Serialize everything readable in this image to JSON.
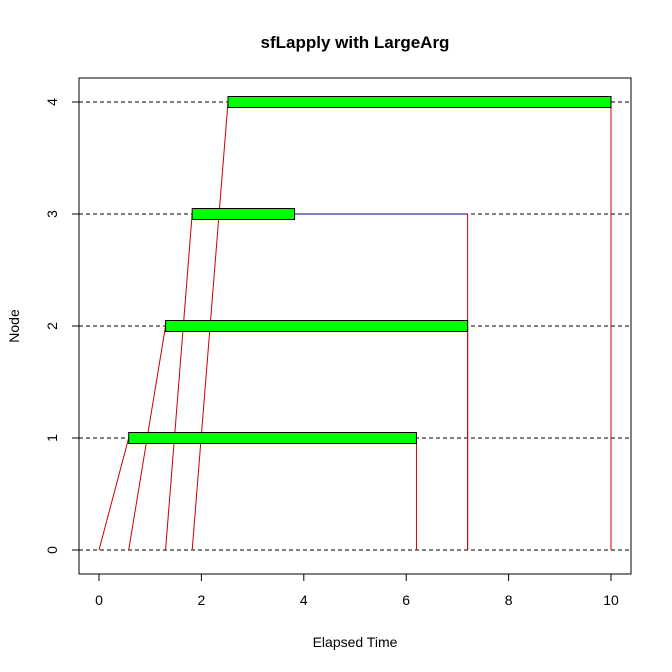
{
  "chart_data": {
    "type": "timeline",
    "title": "sfLapply with LargeArg",
    "xlabel": "Elapsed Time",
    "ylabel": "Node",
    "xlim": [
      0,
      10
    ],
    "ylim": [
      0,
      4
    ],
    "x_ticks": [
      0,
      2,
      4,
      6,
      8,
      10
    ],
    "y_ticks": [
      0,
      1,
      2,
      3,
      4
    ],
    "grid": "dashed horizontal lines at each node",
    "nodes": [
      1,
      2,
      3,
      4
    ],
    "tasks": [
      {
        "node": 1,
        "send_start": 0.0,
        "compute_start": 0.58,
        "compute_end": 6.2,
        "result_received": 6.2
      },
      {
        "node": 2,
        "send_start": 0.58,
        "compute_start": 1.3,
        "compute_end": 7.2,
        "result_received": 7.2
      },
      {
        "node": 3,
        "send_start": 1.3,
        "compute_start": 1.82,
        "compute_end": 3.82,
        "result_received": 7.2
      },
      {
        "node": 4,
        "send_start": 1.82,
        "compute_start": 2.52,
        "compute_end": 10.0,
        "result_received": 10.0
      }
    ],
    "colors": {
      "compute": "#00ff00",
      "message": "#cc0000",
      "idle": "#000080",
      "grid": "#000000",
      "outline": "#000000"
    }
  }
}
